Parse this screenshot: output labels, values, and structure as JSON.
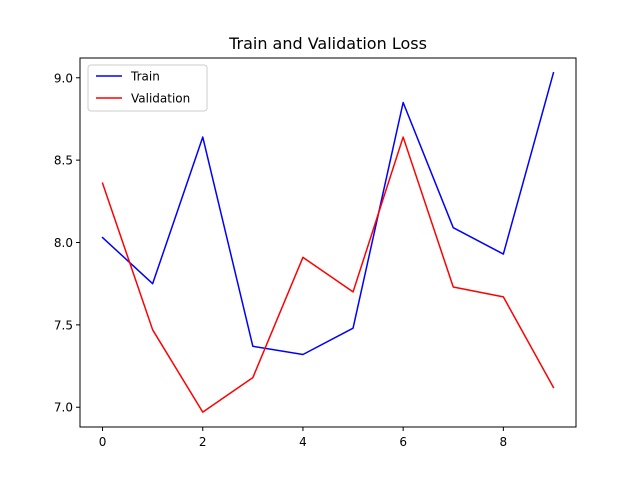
{
  "chart_data": {
    "type": "line",
    "title": "Train and Validation Loss",
    "xlabel": "",
    "ylabel": "",
    "x": [
      0,
      1,
      2,
      3,
      4,
      5,
      6,
      7,
      8,
      9
    ],
    "xlim": [
      -0.45,
      9.45
    ],
    "ylim": [
      6.88,
      9.12
    ],
    "xticks": [
      0,
      2,
      4,
      6,
      8
    ],
    "xtick_labels": [
      "0",
      "2",
      "4",
      "6",
      "8"
    ],
    "yticks": [
      7.0,
      7.5,
      8.0,
      8.5,
      9.0
    ],
    "ytick_labels": [
      "7.0",
      "7.5",
      "8.0",
      "8.5",
      "9.0"
    ],
    "grid": false,
    "legend_position": "top-left",
    "series": [
      {
        "name": "Train",
        "color": "#0000ff",
        "values": [
          8.03,
          7.75,
          8.64,
          7.37,
          7.32,
          7.48,
          8.85,
          8.09,
          7.93,
          9.03
        ]
      },
      {
        "name": "Validation",
        "color": "#ff0000",
        "values": [
          8.36,
          7.47,
          6.97,
          7.18,
          7.91,
          7.7,
          8.64,
          7.73,
          7.67,
          7.12
        ]
      }
    ]
  }
}
